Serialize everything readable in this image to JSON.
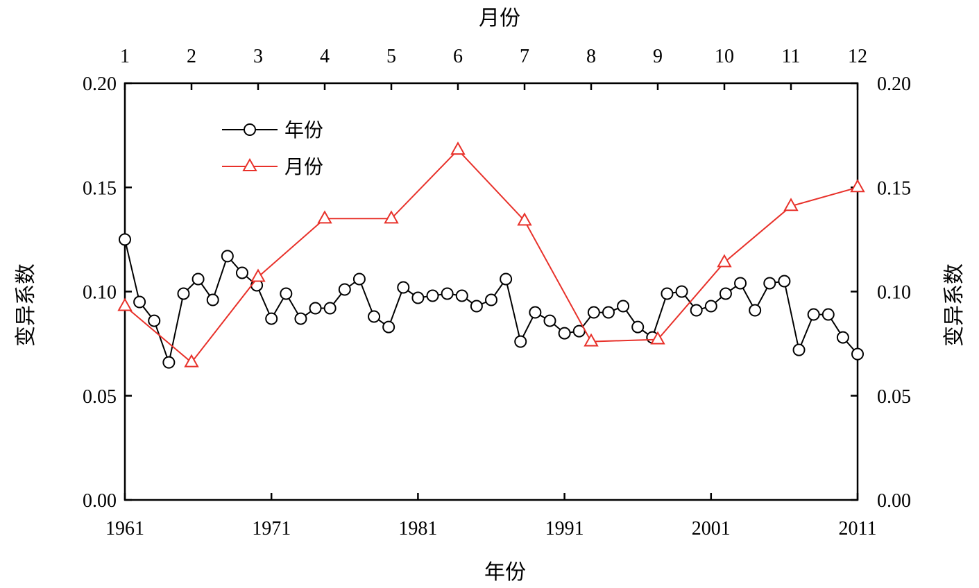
{
  "chart_data": {
    "type": "line",
    "xlabel_bottom": "年份",
    "xlabel_top": "月份",
    "ylabel_left": "变异系数",
    "ylabel_right": "变异系数",
    "ylim": [
      0,
      0.2
    ],
    "yticks": [
      "0.00",
      "0.05",
      "0.10",
      "0.15",
      "0.20"
    ],
    "xlim_bottom": [
      1961,
      2011
    ],
    "xticks_bottom": [
      "1961",
      "1971",
      "1981",
      "1991",
      "2001",
      "2011"
    ],
    "xlim_top": [
      1,
      12
    ],
    "xticks_top": [
      "1",
      "2",
      "3",
      "4",
      "5",
      "6",
      "7",
      "8",
      "9",
      "10",
      "11",
      "12"
    ],
    "legend_position": "top-left",
    "series": [
      {
        "name": "年份",
        "axis": "bottom",
        "color": "#000000",
        "marker": "circle",
        "x": [
          1961,
          1962,
          1963,
          1964,
          1965,
          1966,
          1967,
          1968,
          1969,
          1970,
          1971,
          1972,
          1973,
          1974,
          1975,
          1976,
          1977,
          1978,
          1979,
          1980,
          1981,
          1982,
          1983,
          1984,
          1985,
          1986,
          1987,
          1988,
          1989,
          1990,
          1991,
          1992,
          1993,
          1994,
          1995,
          1996,
          1997,
          1998,
          1999,
          2000,
          2001,
          2002,
          2003,
          2004,
          2005,
          2006,
          2007,
          2008,
          2009,
          2010,
          2011
        ],
        "values": [
          0.125,
          0.095,
          0.086,
          0.066,
          0.099,
          0.106,
          0.096,
          0.117,
          0.109,
          0.103,
          0.087,
          0.099,
          0.087,
          0.092,
          0.092,
          0.101,
          0.106,
          0.088,
          0.083,
          0.102,
          0.097,
          0.098,
          0.099,
          0.098,
          0.093,
          0.096,
          0.106,
          0.076,
          0.09,
          0.086,
          0.08,
          0.081,
          0.09,
          0.09,
          0.093,
          0.083,
          0.078,
          0.099,
          0.1,
          0.091,
          0.093,
          0.099,
          0.104,
          0.091,
          0.104,
          0.105,
          0.072,
          0.089,
          0.089,
          0.078,
          0.07
        ]
      },
      {
        "name": "月份",
        "axis": "top",
        "color": "#e8312a",
        "marker": "triangle",
        "x": [
          1,
          2,
          3,
          4,
          5,
          6,
          7,
          8,
          9,
          10,
          11,
          12
        ],
        "values": [
          0.093,
          0.066,
          0.107,
          0.135,
          0.135,
          0.168,
          0.134,
          0.076,
          0.077,
          0.114,
          0.141,
          0.15
        ]
      }
    ]
  }
}
